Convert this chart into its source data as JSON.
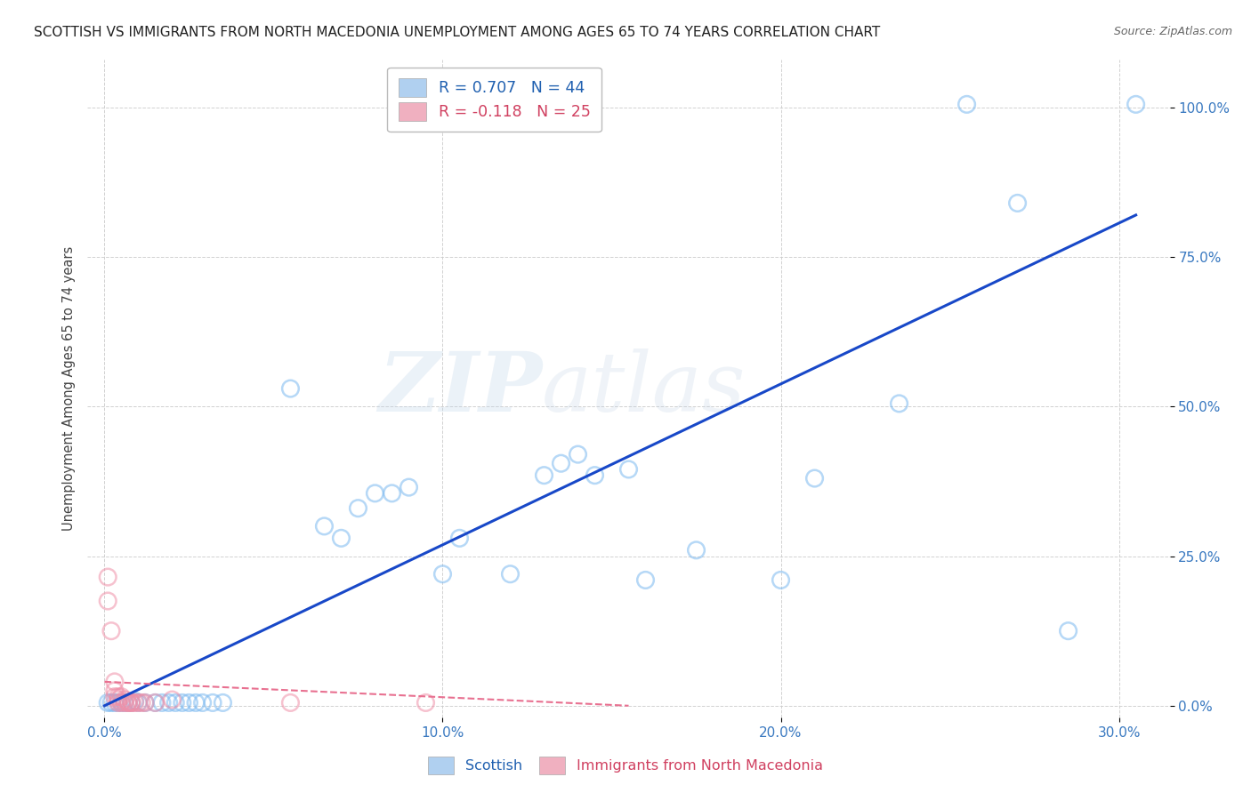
{
  "title": "SCOTTISH VS IMMIGRANTS FROM NORTH MACEDONIA UNEMPLOYMENT AMONG AGES 65 TO 74 YEARS CORRELATION CHART",
  "source": "Source: ZipAtlas.com",
  "xlabel_ticks": [
    "0.0%",
    "10.0%",
    "20.0%",
    "30.0%"
  ],
  "ylabel_ticks": [
    "0.0%",
    "25.0%",
    "50.0%",
    "75.0%",
    "100.0%"
  ],
  "ylabel_label": "Unemployment Among Ages 65 to 74 years",
  "xlim": [
    -0.005,
    0.315
  ],
  "ylim": [
    -0.02,
    1.08
  ],
  "watermark_zip": "ZIP",
  "watermark_atlas": "atlas",
  "scottish_scatter": [
    [
      0.001,
      0.005
    ],
    [
      0.002,
      0.005
    ],
    [
      0.003,
      0.005
    ],
    [
      0.004,
      0.005
    ],
    [
      0.005,
      0.005
    ],
    [
      0.006,
      0.005
    ],
    [
      0.007,
      0.005
    ],
    [
      0.008,
      0.005
    ],
    [
      0.009,
      0.008
    ],
    [
      0.01,
      0.005
    ],
    [
      0.012,
      0.005
    ],
    [
      0.015,
      0.005
    ],
    [
      0.017,
      0.005
    ],
    [
      0.019,
      0.005
    ],
    [
      0.021,
      0.005
    ],
    [
      0.023,
      0.005
    ],
    [
      0.025,
      0.005
    ],
    [
      0.027,
      0.005
    ],
    [
      0.029,
      0.005
    ],
    [
      0.032,
      0.005
    ],
    [
      0.035,
      0.005
    ],
    [
      0.055,
      0.53
    ],
    [
      0.065,
      0.3
    ],
    [
      0.07,
      0.28
    ],
    [
      0.075,
      0.33
    ],
    [
      0.08,
      0.355
    ],
    [
      0.085,
      0.355
    ],
    [
      0.09,
      0.365
    ],
    [
      0.1,
      0.22
    ],
    [
      0.105,
      0.28
    ],
    [
      0.12,
      0.22
    ],
    [
      0.13,
      0.385
    ],
    [
      0.135,
      0.405
    ],
    [
      0.14,
      0.42
    ],
    [
      0.145,
      0.385
    ],
    [
      0.155,
      0.395
    ],
    [
      0.16,
      0.21
    ],
    [
      0.175,
      0.26
    ],
    [
      0.2,
      0.21
    ],
    [
      0.21,
      0.38
    ],
    [
      0.235,
      0.505
    ],
    [
      0.255,
      1.005
    ],
    [
      0.27,
      0.84
    ],
    [
      0.285,
      0.125
    ],
    [
      0.305,
      1.005
    ]
  ],
  "macedonian_scatter": [
    [
      0.001,
      0.215
    ],
    [
      0.001,
      0.175
    ],
    [
      0.002,
      0.125
    ],
    [
      0.003,
      0.04
    ],
    [
      0.003,
      0.025
    ],
    [
      0.003,
      0.015
    ],
    [
      0.004,
      0.005
    ],
    [
      0.004,
      0.015
    ],
    [
      0.004,
      0.01
    ],
    [
      0.005,
      0.005
    ],
    [
      0.005,
      0.015
    ],
    [
      0.006,
      0.005
    ],
    [
      0.006,
      0.01
    ],
    [
      0.007,
      0.005
    ],
    [
      0.007,
      0.005
    ],
    [
      0.008,
      0.005
    ],
    [
      0.008,
      0.005
    ],
    [
      0.009,
      0.005
    ],
    [
      0.01,
      0.005
    ],
    [
      0.011,
      0.005
    ],
    [
      0.012,
      0.005
    ],
    [
      0.015,
      0.005
    ],
    [
      0.02,
      0.01
    ],
    [
      0.055,
      0.005
    ],
    [
      0.095,
      0.005
    ]
  ],
  "scottish_line_x": [
    0.0,
    0.305
  ],
  "scottish_line_y": [
    0.0,
    0.82
  ],
  "macedonian_line_x": [
    0.0,
    0.155
  ],
  "macedonian_line_y": [
    0.04,
    0.0
  ],
  "scatter_size": 180,
  "scatter_alpha": 0.55,
  "scottish_color": "#7ab8f0",
  "scottish_edge": "#7ab8f0",
  "macedonian_color": "#f090a8",
  "macedonian_edge": "#f090a8",
  "line_blue": "#1848c8",
  "line_pink": "#e87090",
  "grid_color": "#cccccc",
  "bg_color": "#ffffff",
  "title_fontsize": 11,
  "source_fontsize": 9,
  "tick_color_x": "#3878c0",
  "tick_color_y": "#3878c0",
  "ylabel_color": "#444444",
  "legend1_face": "#b0d0f0",
  "legend2_face": "#f0b0c0",
  "legend1_text_color": "#2060b0",
  "legend2_text_color": "#d04060"
}
